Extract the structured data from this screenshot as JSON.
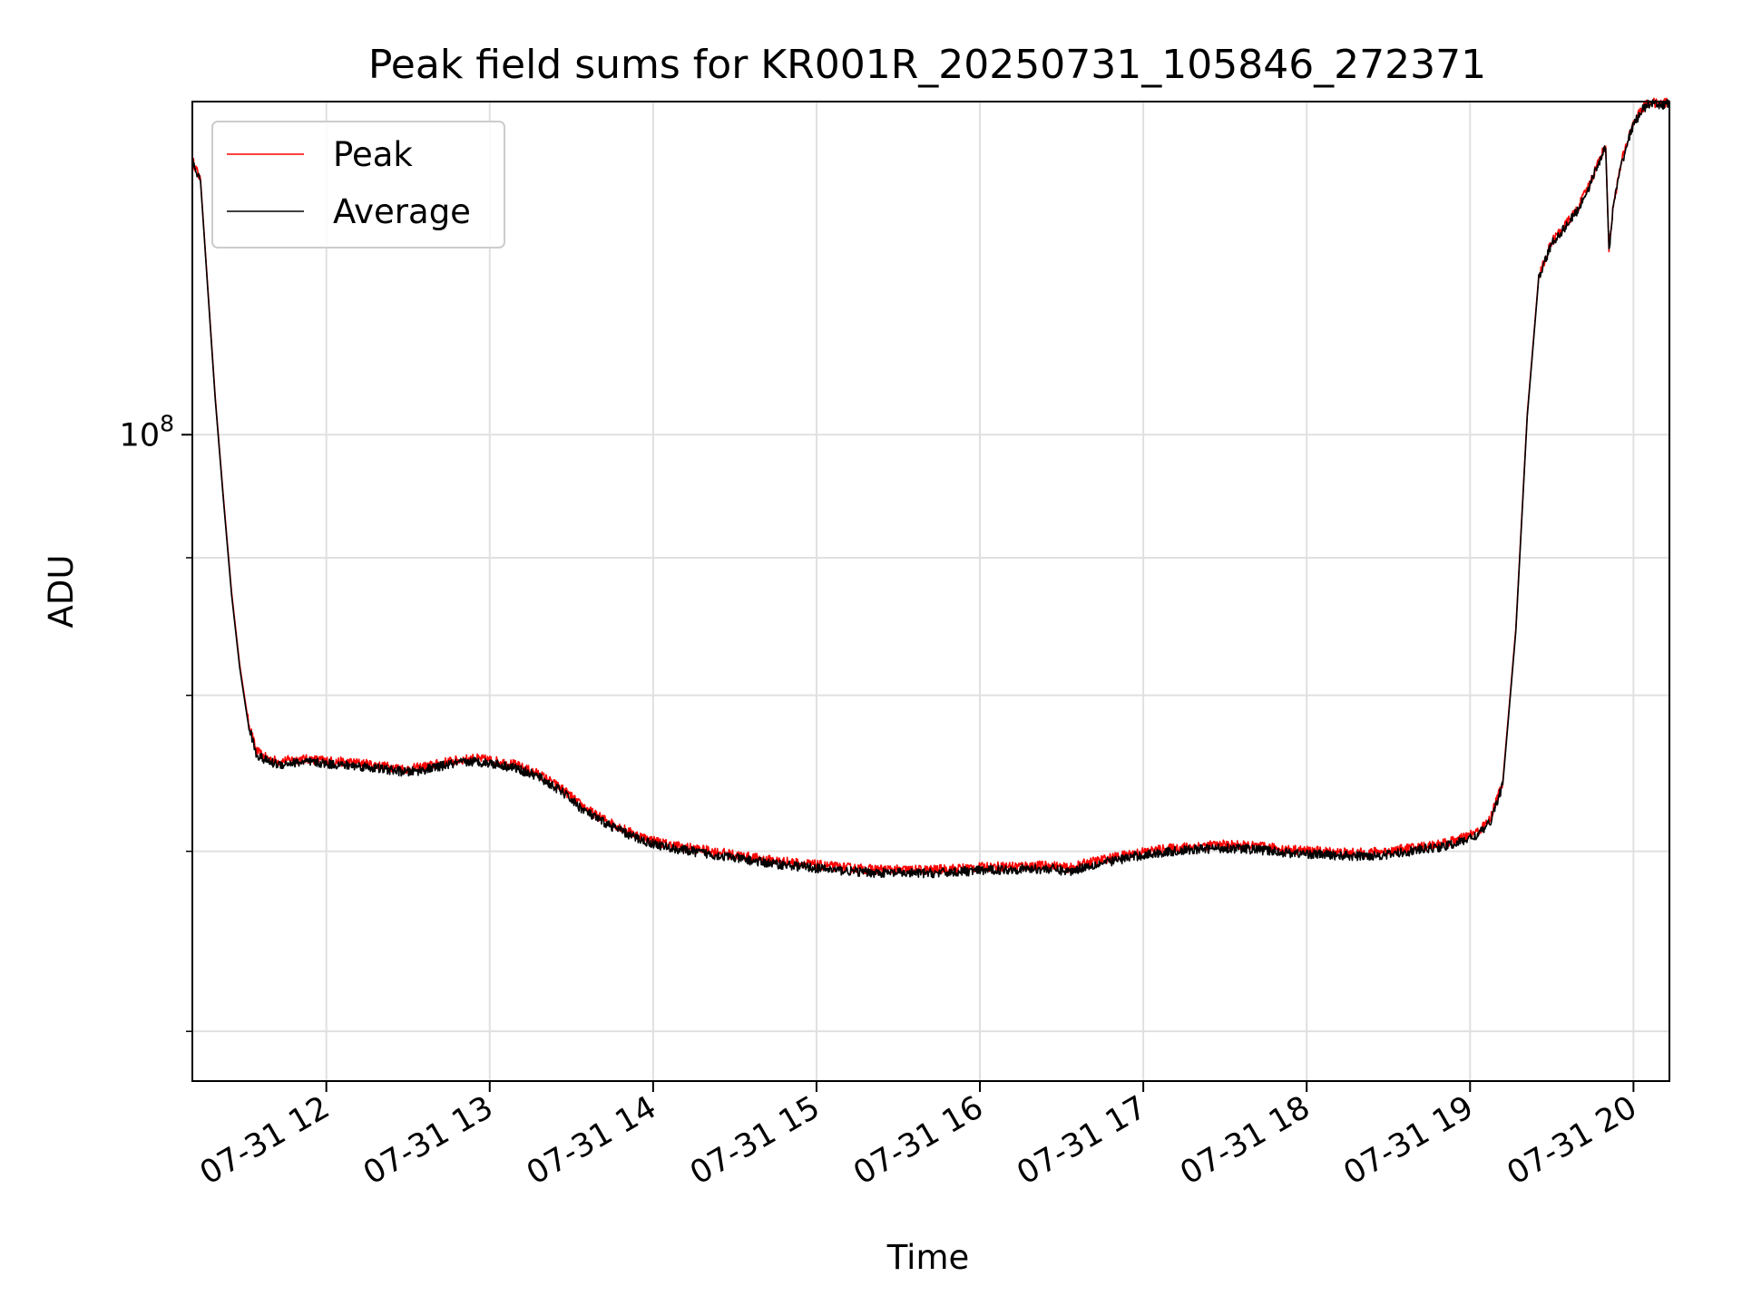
{
  "chart_data": {
    "type": "line",
    "title": "Peak field sums for KR001R_20250731_105846_272371",
    "xlabel": "Time",
    "ylabel": "ADU",
    "x_tick_labels": [
      "07-31 12",
      "07-31 13",
      "07-31 14",
      "07-31 15",
      "07-31 16",
      "07-31 17",
      "07-31 18",
      "07-31 19",
      "07-31 20"
    ],
    "x_tick_hours": [
      12,
      13,
      14,
      15,
      16,
      17,
      18,
      19,
      20
    ],
    "xlim_hours": [
      11.18,
      20.22
    ],
    "y_scale": "log",
    "y_tick_label_base": "10",
    "y_tick_label_exp": "8",
    "y_major_tick": 100000000,
    "y_minor_ticks": [
      60000000,
      70000000,
      80000000,
      90000000
    ],
    "ylim": [
      57500000,
      133000000
    ],
    "grid": true,
    "legend_position": "top-left",
    "colors": {
      "Peak": "#ff0000",
      "Average": "#000000"
    },
    "series": [
      {
        "name": "Peak",
        "x_hours": [
          11.18,
          11.23,
          11.27,
          11.32,
          11.37,
          11.42,
          11.47,
          11.52,
          11.57,
          11.62,
          11.67,
          11.72,
          11.78,
          11.85,
          11.95,
          12.05,
          12.2,
          12.35,
          12.5,
          12.62,
          12.75,
          12.9,
          13.0,
          13.15,
          13.3,
          13.45,
          13.55,
          13.65,
          13.75,
          13.85,
          13.95,
          14.1,
          14.3,
          14.5,
          14.7,
          14.9,
          15.1,
          15.3,
          15.5,
          15.7,
          15.9,
          16.1,
          16.3,
          16.45,
          16.5,
          16.55,
          16.65,
          16.8,
          16.95,
          17.1,
          17.3,
          17.5,
          17.7,
          17.9,
          18.1,
          18.3,
          18.5,
          18.7,
          18.85,
          18.95,
          19.05,
          19.12,
          19.2,
          19.28,
          19.35,
          19.42,
          19.5,
          19.58,
          19.66,
          19.74,
          19.8,
          19.83,
          19.85,
          19.88,
          19.93,
          19.99,
          20.05,
          20.1,
          20.15,
          20.22
        ],
        "y": [
          126500000,
          124400000,
          114500000,
          103300000,
          94800000,
          87400000,
          82100000,
          78400000,
          76300000,
          75900000,
          75700000,
          75600000,
          75700000,
          75750000,
          75700000,
          75600000,
          75500000,
          75300000,
          75100000,
          75300000,
          75600000,
          75800000,
          75700000,
          75400000,
          74800000,
          73800000,
          72900000,
          72200000,
          71700000,
          71200000,
          70800000,
          70400000,
          70100000,
          69800000,
          69500000,
          69300000,
          69100000,
          68950000,
          68900000,
          68900000,
          69000000,
          69100000,
          69150000,
          69150000,
          69050000,
          69000000,
          69300000,
          69600000,
          69900000,
          70100000,
          70300000,
          70400000,
          70300000,
          70100000,
          70000000,
          69900000,
          70000000,
          70300000,
          70500000,
          70800000,
          71200000,
          71900000,
          74300000,
          84700000,
          101800000,
          114500000,
          118000000,
          119600000,
          121400000,
          124300000,
          127000000,
          128000000,
          117300000,
          122200000,
          126500000,
          130200000,
          132200000,
          133000000,
          132700000,
          133000000
        ]
      },
      {
        "name": "Average",
        "x_hours": [
          11.18,
          11.23,
          11.27,
          11.32,
          11.37,
          11.42,
          11.47,
          11.52,
          11.57,
          11.62,
          11.67,
          11.72,
          11.78,
          11.85,
          11.95,
          12.05,
          12.2,
          12.35,
          12.5,
          12.62,
          12.75,
          12.9,
          13.0,
          13.15,
          13.3,
          13.45,
          13.55,
          13.65,
          13.75,
          13.85,
          13.95,
          14.1,
          14.3,
          14.5,
          14.7,
          14.9,
          15.1,
          15.3,
          15.5,
          15.7,
          15.9,
          16.1,
          16.3,
          16.45,
          16.5,
          16.55,
          16.65,
          16.8,
          16.95,
          17.1,
          17.3,
          17.5,
          17.7,
          17.9,
          18.1,
          18.3,
          18.5,
          18.7,
          18.85,
          18.95,
          19.05,
          19.12,
          19.2,
          19.28,
          19.35,
          19.42,
          19.5,
          19.58,
          19.66,
          19.74,
          19.8,
          19.83,
          19.85,
          19.88,
          19.93,
          19.99,
          20.05,
          20.1,
          20.15,
          20.22
        ],
        "y": [
          126300000,
          124200000,
          114300000,
          103100000,
          94600000,
          87200000,
          81900000,
          78200000,
          76100000,
          75700000,
          75500000,
          75400000,
          75500000,
          75550000,
          75500000,
          75400000,
          75300000,
          75100000,
          74900000,
          75100000,
          75400000,
          75600000,
          75500000,
          75200000,
          74600000,
          73600000,
          72700000,
          72000000,
          71500000,
          71000000,
          70600000,
          70200000,
          69900000,
          69600000,
          69300000,
          69100000,
          68900000,
          68750000,
          68700000,
          68700000,
          68800000,
          68900000,
          68950000,
          68950000,
          68850000,
          68800000,
          69100000,
          69400000,
          69700000,
          69900000,
          70100000,
          70200000,
          70100000,
          69900000,
          69800000,
          69700000,
          69800000,
          70100000,
          70300000,
          70600000,
          71000000,
          71700000,
          74100000,
          84500000,
          101600000,
          114300000,
          117800000,
          119400000,
          121200000,
          124100000,
          126800000,
          127800000,
          117100000,
          122000000,
          126300000,
          130000000,
          132000000,
          132800000,
          132500000,
          132800000
        ]
      }
    ]
  }
}
